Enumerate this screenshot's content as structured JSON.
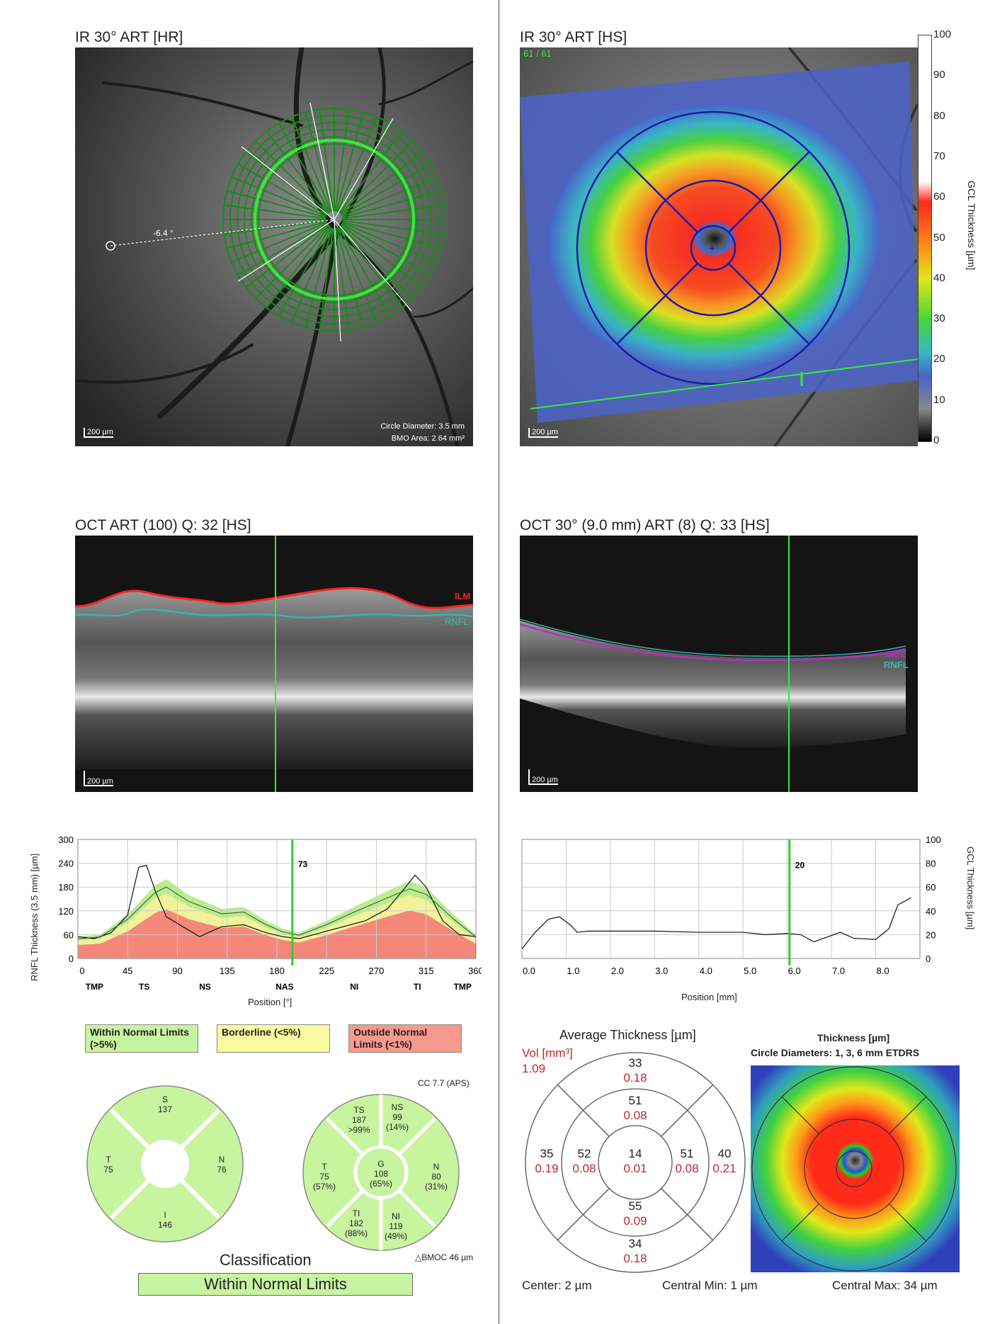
{
  "ir_hr": {
    "title": "IR 30° ART [HR]",
    "angle_label": "-6.4 °",
    "scale_label": "200 µm",
    "circle_diameter": "Circle Diameter: 3.5 mm",
    "bmo_area": "BMO Area: 2.64 mm²"
  },
  "ir_hs": {
    "title": "IR 30° ART [HS]",
    "scan_label": "61 / 61",
    "scale_label": "200 µm",
    "colorbar": {
      "ticks": [
        "100",
        "90",
        "80",
        "70",
        "60",
        "50",
        "40",
        "30",
        "20",
        "10",
        "0"
      ],
      "label": "GCL Thickness [µm]"
    }
  },
  "oct_circle": {
    "title": "OCT ART (100) Q: 32 [HS]",
    "scale_label": "200 µm",
    "layers": [
      "ILM",
      "RNFL"
    ]
  },
  "oct_line": {
    "title": "OCT 30° (9.0 mm) ART (8) Q: 33 [HS]",
    "scale_label": "200 µm",
    "layers": [
      "GCL",
      "RNFL"
    ]
  },
  "rnfl_chart": {
    "ylabel": "RNFL Thickness (3.5 mm) [µm]",
    "xlabel": "Position [°]",
    "yticks": [
      "300",
      "240",
      "180",
      "120",
      "60",
      "0"
    ],
    "xticks": [
      "0",
      "45",
      "90",
      "135",
      "180",
      "225",
      "270",
      "315",
      "360"
    ],
    "sectors": [
      "TMP",
      "TS",
      "NS",
      "NAS",
      "NI",
      "TI",
      "TMP"
    ],
    "cursor_value": "73"
  },
  "gcl_chart": {
    "ylabel": "GCL Thickness [µm]",
    "xlabel": "Position [mm]",
    "yticks": [
      "100",
      "80",
      "60",
      "40",
      "20",
      "0"
    ],
    "xticks": [
      "0.0",
      "1.0",
      "2.0",
      "3.0",
      "4.0",
      "5.0",
      "6.0",
      "7.0",
      "8.0"
    ],
    "cursor_value": "20"
  },
  "legend": {
    "within": "Within Normal Limits (>5%)",
    "borderline": "Borderline (<5%)",
    "outside": "Outside Normal Limits (<1%)"
  },
  "sectors_left": {
    "S": {
      "label": "S",
      "value": "137"
    },
    "T": {
      "label": "T",
      "value": "75"
    },
    "N": {
      "label": "N",
      "value": "76"
    },
    "I": {
      "label": "I",
      "value": "146"
    }
  },
  "sectors_right": {
    "cc": "CC 7.7 (APS)",
    "TS": {
      "label": "TS",
      "value": "187",
      "pct": ">99%"
    },
    "NS": {
      "label": "NS",
      "value": "99",
      "pct": "(14%)"
    },
    "T": {
      "label": "T",
      "value": "75",
      "pct": "(57%)"
    },
    "G": {
      "label": "G",
      "value": "108",
      "pct": "(65%)"
    },
    "N": {
      "label": "N",
      "value": "80",
      "pct": "(31%)"
    },
    "TI": {
      "label": "TI",
      "value": "182",
      "pct": "(88%)"
    },
    "NI": {
      "label": "NI",
      "value": "119",
      "pct": "(49%)"
    },
    "bmoc": "BMOC 46 µm"
  },
  "classification": {
    "title": "Classification",
    "result": "Within Normal Limits"
  },
  "etdrs": {
    "title": "Average Thickness [µm]",
    "vol_label": "Vol [mm³]",
    "vol_value": "1.09",
    "outer_s": {
      "t": "33",
      "v": "0.18"
    },
    "inner_s": {
      "t": "51",
      "v": "0.08"
    },
    "outer_t": {
      "t": "35",
      "v": "0.19"
    },
    "inner_t": {
      "t": "52",
      "v": "0.08"
    },
    "center": {
      "t": "14",
      "v": "0.01"
    },
    "inner_n": {
      "t": "51",
      "v": "0.08"
    },
    "outer_n": {
      "t": "40",
      "v": "0.21"
    },
    "inner_i": {
      "t": "55",
      "v": "0.09"
    },
    "outer_i": {
      "t": "34",
      "v": "0.18"
    },
    "center_label": "Center: 2 µm",
    "central_min": "Central Min: 1 µm",
    "central_max": "Central Max: 34 µm"
  },
  "thickness_map": {
    "title": "Thickness [µm]",
    "subtitle": "Circle Diameters:  1, 3, 6 mm ETDRS"
  }
}
